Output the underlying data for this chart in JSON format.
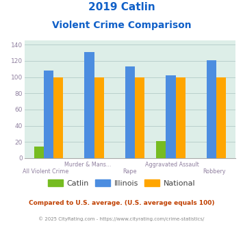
{
  "title_line1": "2019 Catlin",
  "title_line2": "Violent Crime Comparison",
  "categories": [
    "All Violent Crime",
    "Murder & Mans...",
    "Rape",
    "Aggravated Assault",
    "Robbery"
  ],
  "catlin": [
    14,
    0,
    0,
    21,
    0
  ],
  "illinois": [
    108,
    131,
    113,
    102,
    121
  ],
  "national": [
    100,
    100,
    100,
    100,
    100
  ],
  "catlin_color": "#76bc21",
  "illinois_color": "#4c8de0",
  "national_color": "#ffa500",
  "bg_color": "#ddeee8",
  "ylim": [
    0,
    145
  ],
  "yticks": [
    0,
    20,
    40,
    60,
    80,
    100,
    120,
    140
  ],
  "title_color": "#1060c8",
  "footnote1": "Compared to U.S. average. (U.S. average equals 100)",
  "footnote2": "© 2025 CityRating.com - https://www.cityrating.com/crime-statistics/",
  "footnote1_color": "#c04000",
  "footnote2_color": "#888888",
  "xlabel_color": "#9080a0",
  "tick_color": "#9080a0",
  "grid_color": "#b8d0cc",
  "legend_text_color": "#404040"
}
